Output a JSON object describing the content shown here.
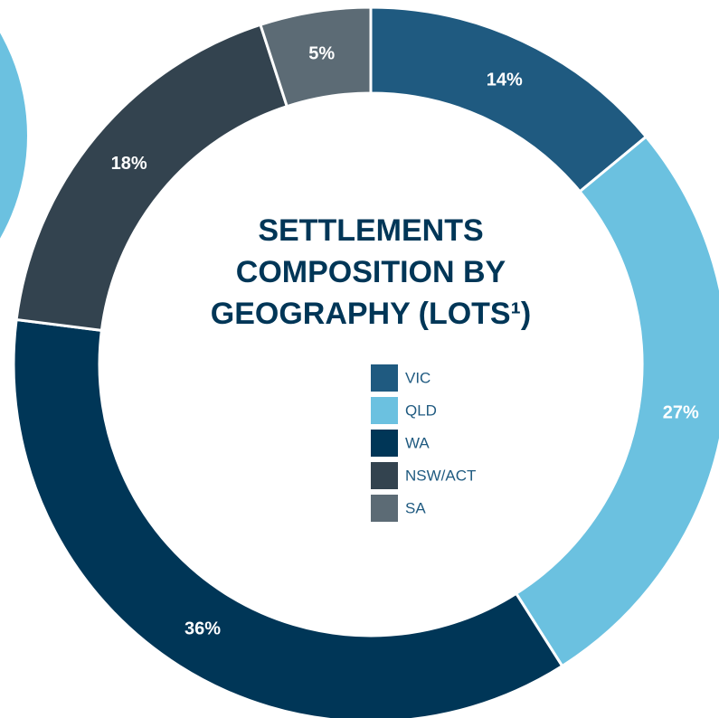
{
  "chart_data": {
    "type": "donut",
    "title": "SETTLEMENTS COMPOSITION BY GEOGRAPHY (LOTS¹)",
    "categories": [
      "VIC",
      "QLD",
      "WA",
      "NSW/ACT",
      "SA"
    ],
    "values": [
      14,
      27,
      36,
      18,
      5
    ],
    "value_labels": [
      "14%",
      "27%",
      "36%",
      "18%",
      "5%"
    ],
    "colors": [
      "#1f5a80",
      "#6bc1e0",
      "#003657",
      "#33434f",
      "#5c6b75"
    ]
  }
}
